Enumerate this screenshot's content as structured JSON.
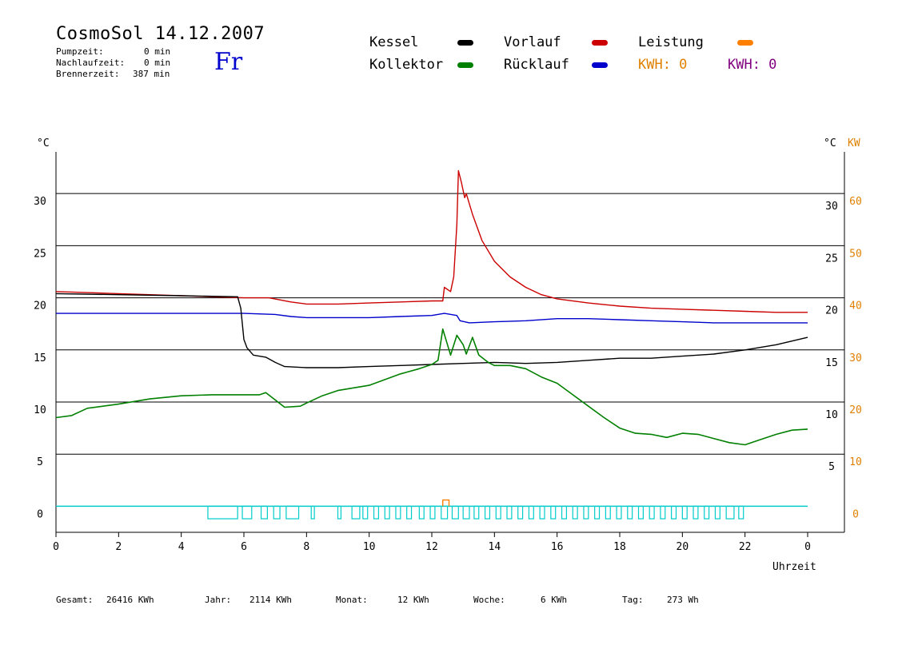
{
  "header": {
    "title": "CosmoSol 14.12.2007",
    "day": "Fr",
    "stats": [
      {
        "label": "Pumpzeit:",
        "value": "0 min"
      },
      {
        "label": "Nachlaufzeit:",
        "value": "0 min"
      },
      {
        "label": "Brennerzeit:",
        "value": "387 min"
      }
    ]
  },
  "legend": {
    "kessel": "Kessel",
    "kollektor": "Kollektor",
    "vorlauf": "Vorlauf",
    "ruecklauf": "Rücklauf",
    "leistung": "Leistung",
    "kwh1": "KWH: 0",
    "kwh2": "KWH: 0"
  },
  "colors": {
    "kessel": "#000000",
    "kollektor": "#008000",
    "vorlauf": "#cc0000",
    "ruecklauf": "#0000cc",
    "leistung": "#ff8000",
    "pump": "#00cccc",
    "kwh2": "#800080"
  },
  "footer": {
    "gesamt": {
      "label": "Gesamt:",
      "value": "26416 KWh"
    },
    "jahr": {
      "label": "Jahr:",
      "value": "2114 KWh"
    },
    "monat": {
      "label": "Monat:",
      "value": "12 KWh"
    },
    "woche": {
      "label": "Woche:",
      "value": "6 KWh"
    },
    "tag": {
      "label": "Tag:",
      "value": "273 Wh"
    }
  },
  "chart_data": {
    "type": "line",
    "xlabel": "Uhrzeit",
    "ylabel_left": "°C",
    "ylabel_right": "°C",
    "ylabel_right2": "KW",
    "xlim": [
      0,
      24
    ],
    "ylim": [
      -2.5,
      34
    ],
    "x_ticks": [
      "0",
      "2",
      "4",
      "6",
      "8",
      "10",
      "12",
      "14",
      "16",
      "18",
      "20",
      "22",
      "0"
    ],
    "y_ticks_left": [
      0,
      5,
      10,
      15,
      20,
      25,
      30
    ],
    "y_ticks_right": [
      5,
      10,
      15,
      20,
      25,
      30
    ],
    "y_ticks_right2": [
      0,
      10,
      20,
      30,
      40,
      50,
      60
    ],
    "grid": "horizontal",
    "series": [
      {
        "name": "Vorlauf",
        "key": "vorlauf",
        "points": [
          [
            0,
            20.6
          ],
          [
            1,
            20.5
          ],
          [
            2,
            20.4
          ],
          [
            3,
            20.3
          ],
          [
            4,
            20.2
          ],
          [
            5,
            20.1
          ],
          [
            6,
            20.0
          ],
          [
            6.8,
            20.0
          ],
          [
            7.5,
            19.6
          ],
          [
            8,
            19.4
          ],
          [
            9,
            19.4
          ],
          [
            10,
            19.5
          ],
          [
            11,
            19.6
          ],
          [
            12,
            19.7
          ],
          [
            12.35,
            19.7
          ],
          [
            12.4,
            21.0
          ],
          [
            12.6,
            20.6
          ],
          [
            12.7,
            22
          ],
          [
            12.8,
            27
          ],
          [
            12.85,
            32.2
          ],
          [
            12.95,
            31
          ],
          [
            13.05,
            29.6
          ],
          [
            13.1,
            30
          ],
          [
            13.3,
            28
          ],
          [
            13.6,
            25.5
          ],
          [
            14,
            23.5
          ],
          [
            14.5,
            22
          ],
          [
            15,
            21
          ],
          [
            15.5,
            20.3
          ],
          [
            16,
            19.9
          ],
          [
            17,
            19.5
          ],
          [
            18,
            19.2
          ],
          [
            19,
            19
          ],
          [
            20,
            18.9
          ],
          [
            21,
            18.8
          ],
          [
            22,
            18.7
          ],
          [
            23,
            18.6
          ],
          [
            24,
            18.6
          ]
        ]
      },
      {
        "name": "Rücklauf",
        "key": "ruecklauf",
        "points": [
          [
            0,
            18.5
          ],
          [
            3,
            18.5
          ],
          [
            6,
            18.5
          ],
          [
            7,
            18.4
          ],
          [
            7.5,
            18.2
          ],
          [
            8,
            18.1
          ],
          [
            10,
            18.1
          ],
          [
            11,
            18.2
          ],
          [
            12,
            18.3
          ],
          [
            12.4,
            18.5
          ],
          [
            12.8,
            18.3
          ],
          [
            12.9,
            17.8
          ],
          [
            13.2,
            17.6
          ],
          [
            14,
            17.7
          ],
          [
            15,
            17.8
          ],
          [
            16,
            18.0
          ],
          [
            17,
            18.0
          ],
          [
            18,
            17.9
          ],
          [
            19,
            17.8
          ],
          [
            20,
            17.7
          ],
          [
            21,
            17.6
          ],
          [
            22,
            17.6
          ],
          [
            24,
            17.6
          ]
        ]
      },
      {
        "name": "Kessel",
        "key": "kessel",
        "points": [
          [
            0,
            20.4
          ],
          [
            2,
            20.3
          ],
          [
            4,
            20.2
          ],
          [
            5.8,
            20.1
          ],
          [
            5.9,
            19
          ],
          [
            6.0,
            16
          ],
          [
            6.1,
            15.2
          ],
          [
            6.3,
            14.5
          ],
          [
            6.7,
            14.3
          ],
          [
            7,
            13.8
          ],
          [
            7.3,
            13.4
          ],
          [
            8,
            13.3
          ],
          [
            9,
            13.3
          ],
          [
            10,
            13.4
          ],
          [
            11,
            13.5
          ],
          [
            12,
            13.6
          ],
          [
            13,
            13.7
          ],
          [
            14,
            13.8
          ],
          [
            15,
            13.7
          ],
          [
            16,
            13.8
          ],
          [
            17,
            14.0
          ],
          [
            18,
            14.2
          ],
          [
            19,
            14.2
          ],
          [
            20,
            14.4
          ],
          [
            21,
            14.6
          ],
          [
            22,
            15.0
          ],
          [
            23,
            15.5
          ],
          [
            24,
            16.2
          ]
        ]
      },
      {
        "name": "Kollektor",
        "key": "kollektor",
        "points": [
          [
            0,
            8.5
          ],
          [
            0.5,
            8.7
          ],
          [
            1,
            9.4
          ],
          [
            2,
            9.8
          ],
          [
            3,
            10.3
          ],
          [
            4,
            10.6
          ],
          [
            5,
            10.7
          ],
          [
            6,
            10.7
          ],
          [
            6.5,
            10.7
          ],
          [
            6.7,
            10.9
          ],
          [
            7,
            10.2
          ],
          [
            7.3,
            9.5
          ],
          [
            7.8,
            9.6
          ],
          [
            8,
            9.9
          ],
          [
            8.5,
            10.6
          ],
          [
            9,
            11.1
          ],
          [
            10,
            11.6
          ],
          [
            11,
            12.7
          ],
          [
            11.6,
            13.2
          ],
          [
            12,
            13.6
          ],
          [
            12.2,
            14.0
          ],
          [
            12.35,
            17.0
          ],
          [
            12.5,
            15.5
          ],
          [
            12.6,
            14.5
          ],
          [
            12.8,
            16.4
          ],
          [
            13.0,
            15.5
          ],
          [
            13.1,
            14.6
          ],
          [
            13.3,
            16.2
          ],
          [
            13.5,
            14.5
          ],
          [
            13.8,
            13.8
          ],
          [
            14,
            13.5
          ],
          [
            14.5,
            13.5
          ],
          [
            15,
            13.2
          ],
          [
            15.5,
            12.4
          ],
          [
            16,
            11.8
          ],
          [
            16.5,
            10.7
          ],
          [
            17,
            9.6
          ],
          [
            17.5,
            8.5
          ],
          [
            18,
            7.5
          ],
          [
            18.5,
            7.0
          ],
          [
            19,
            6.9
          ],
          [
            19.5,
            6.6
          ],
          [
            20,
            7.0
          ],
          [
            20.5,
            6.9
          ],
          [
            21,
            6.5
          ],
          [
            21.5,
            6.1
          ],
          [
            22,
            5.9
          ],
          [
            22.5,
            6.4
          ],
          [
            23,
            6.9
          ],
          [
            23.5,
            7.3
          ],
          [
            24,
            7.4
          ]
        ]
      },
      {
        "name": "Leistung",
        "key": "leistung",
        "points": [
          [
            12.35,
            0
          ],
          [
            12.35,
            0.6
          ],
          [
            12.55,
            0.6
          ],
          [
            12.55,
            0
          ]
        ]
      }
    ],
    "pump_pulses": [
      [
        4.85,
        5.8
      ],
      [
        5.95,
        6.25
      ],
      [
        6.55,
        6.75
      ],
      [
        6.95,
        7.15
      ],
      [
        7.35,
        7.75
      ],
      [
        8.15,
        8.25
      ],
      [
        9.0,
        9.1
      ],
      [
        9.45,
        9.7
      ],
      [
        9.8,
        9.95
      ],
      [
        10.15,
        10.3
      ],
      [
        10.5,
        10.65
      ],
      [
        10.85,
        11.0
      ],
      [
        11.2,
        11.35
      ],
      [
        11.6,
        11.75
      ],
      [
        11.95,
        12.1
      ],
      [
        12.3,
        12.5
      ],
      [
        12.65,
        12.85
      ],
      [
        13.0,
        13.2
      ],
      [
        13.35,
        13.5
      ],
      [
        13.7,
        13.85
      ],
      [
        14.05,
        14.2
      ],
      [
        14.4,
        14.55
      ],
      [
        14.75,
        14.9
      ],
      [
        15.1,
        15.25
      ],
      [
        15.45,
        15.6
      ],
      [
        15.8,
        15.95
      ],
      [
        16.15,
        16.3
      ],
      [
        16.5,
        16.65
      ],
      [
        16.85,
        17.0
      ],
      [
        17.2,
        17.35
      ],
      [
        17.55,
        17.7
      ],
      [
        17.9,
        18.05
      ],
      [
        18.25,
        18.4
      ],
      [
        18.6,
        18.75
      ],
      [
        18.95,
        19.1
      ],
      [
        19.3,
        19.45
      ],
      [
        19.65,
        19.8
      ],
      [
        20.0,
        20.15
      ],
      [
        20.35,
        20.5
      ],
      [
        20.7,
        20.85
      ],
      [
        21.05,
        21.2
      ],
      [
        21.4,
        21.65
      ],
      [
        21.8,
        21.95
      ]
    ],
    "pump_pulse_height": 1.2
  }
}
